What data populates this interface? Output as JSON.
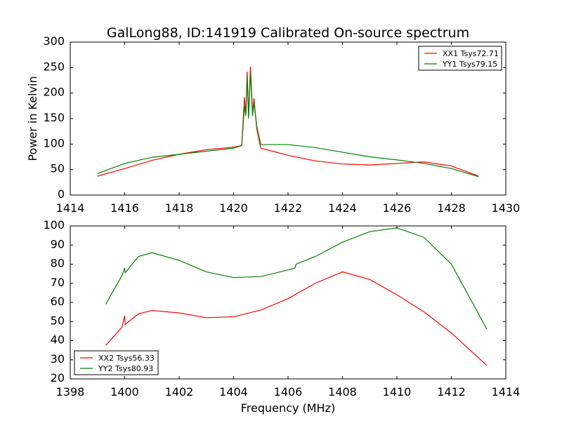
{
  "chart_data": [
    {
      "type": "line",
      "title": "GalLong88, ID:141919 Calibrated On-source spectrum",
      "xlabel": "",
      "ylabel": "Power in Kelvin",
      "xlim": [
        1414,
        1430
      ],
      "ylim": [
        0,
        300
      ],
      "xticks": [
        1414,
        1416,
        1418,
        1420,
        1422,
        1424,
        1426,
        1428,
        1430
      ],
      "yticks": [
        0,
        50,
        100,
        150,
        200,
        250,
        300
      ],
      "legend": "top-right",
      "series": [
        {
          "name": "XX1 Tsys72.71",
          "color": "#ff0000",
          "x": [
            1415,
            1416,
            1417,
            1418,
            1419,
            1420,
            1420.3,
            1420.4,
            1420.45,
            1420.5,
            1420.55,
            1420.62,
            1420.7,
            1420.75,
            1420.85,
            1421,
            1421.5,
            1422,
            1423,
            1424,
            1425,
            1426,
            1427,
            1428,
            1429
          ],
          "y": [
            37,
            52,
            68,
            80,
            89,
            94,
            97,
            192,
            160,
            242,
            155,
            252,
            160,
            190,
            130,
            92,
            85,
            78,
            67,
            61,
            59,
            62,
            65,
            57,
            37
          ]
        },
        {
          "name": "YY1 Tsys79.15",
          "color": "#008000",
          "x": [
            1415,
            1416,
            1417,
            1418,
            1419,
            1420,
            1420.3,
            1420.4,
            1420.45,
            1420.5,
            1420.55,
            1420.62,
            1420.7,
            1420.75,
            1420.85,
            1421,
            1421.5,
            1422,
            1423,
            1424,
            1425,
            1426,
            1427,
            1428,
            1429
          ],
          "y": [
            42,
            62,
            74,
            80,
            86,
            92,
            97,
            175,
            155,
            232,
            150,
            240,
            155,
            182,
            135,
            99,
            99,
            99,
            93,
            84,
            75,
            69,
            62,
            52,
            36
          ]
        }
      ]
    },
    {
      "type": "line",
      "title": "",
      "xlabel": "Frequency (MHz)",
      "ylabel": "",
      "xlim": [
        1398,
        1414
      ],
      "ylim": [
        20,
        100
      ],
      "xticks": [
        1398,
        1400,
        1402,
        1404,
        1406,
        1408,
        1410,
        1412,
        1414
      ],
      "yticks": [
        20,
        30,
        40,
        50,
        60,
        70,
        80,
        90,
        100
      ],
      "legend": "bottom-left",
      "series": [
        {
          "name": "XX2 Tsys56.33",
          "color": "#ff0000",
          "x": [
            1399.3,
            1399.9,
            1400,
            1400.02,
            1400.5,
            1401,
            1402,
            1403,
            1404,
            1405,
            1406,
            1407,
            1408,
            1409,
            1410,
            1411,
            1412,
            1413,
            1413.3
          ],
          "y": [
            37.5,
            47,
            53,
            48.5,
            54,
            55.8,
            54.5,
            52,
            52.5,
            56,
            62,
            70,
            76,
            72,
            64,
            55,
            44,
            31,
            27
          ]
        },
        {
          "name": "YY2 Tsys80.93",
          "color": "#008000",
          "x": [
            1399.3,
            1399.9,
            1400,
            1400.02,
            1400.5,
            1401,
            1402,
            1403,
            1404,
            1405,
            1406,
            1406.25,
            1406.3,
            1407,
            1408,
            1409,
            1410,
            1411,
            1412,
            1413,
            1413.3
          ],
          "y": [
            59,
            74,
            78,
            75.5,
            84,
            86,
            82,
            76,
            73,
            73.5,
            77,
            78,
            80,
            84,
            91.5,
            97,
            99,
            94,
            80,
            54,
            46
          ]
        }
      ]
    }
  ]
}
